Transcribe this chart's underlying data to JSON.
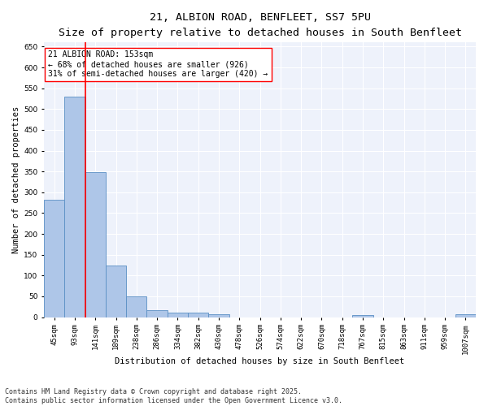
{
  "title1": "21, ALBION ROAD, BENFLEET, SS7 5PU",
  "title2": "Size of property relative to detached houses in South Benfleet",
  "xlabel": "Distribution of detached houses by size in South Benfleet",
  "ylabel": "Number of detached properties",
  "categories": [
    "45sqm",
    "93sqm",
    "141sqm",
    "189sqm",
    "238sqm",
    "286sqm",
    "334sqm",
    "382sqm",
    "430sqm",
    "478sqm",
    "526sqm",
    "574sqm",
    "622sqm",
    "670sqm",
    "718sqm",
    "767sqm",
    "815sqm",
    "863sqm",
    "911sqm",
    "959sqm",
    "1007sqm"
  ],
  "values": [
    283,
    530,
    349,
    125,
    50,
    17,
    11,
    10,
    6,
    0,
    0,
    0,
    0,
    0,
    0,
    5,
    0,
    0,
    0,
    0,
    6
  ],
  "bar_color": "#aec6e8",
  "bar_edge_color": "#5a8fc4",
  "vline_color": "red",
  "annotation_text": "21 ALBION ROAD: 153sqm\n← 68% of detached houses are smaller (926)\n31% of semi-detached houses are larger (420) →",
  "annotation_box_color": "white",
  "annotation_box_edge": "red",
  "ylim": [
    0,
    660
  ],
  "yticks": [
    0,
    50,
    100,
    150,
    200,
    250,
    300,
    350,
    400,
    450,
    500,
    550,
    600,
    650
  ],
  "bg_color": "#eef2fb",
  "grid_color": "white",
  "footnote": "Contains HM Land Registry data © Crown copyright and database right 2025.\nContains public sector information licensed under the Open Government Licence v3.0.",
  "title1_fontsize": 9.5,
  "title2_fontsize": 8.5,
  "xlabel_fontsize": 7.5,
  "ylabel_fontsize": 7.5,
  "tick_fontsize": 6.5,
  "annotation_fontsize": 7,
  "footnote_fontsize": 6
}
